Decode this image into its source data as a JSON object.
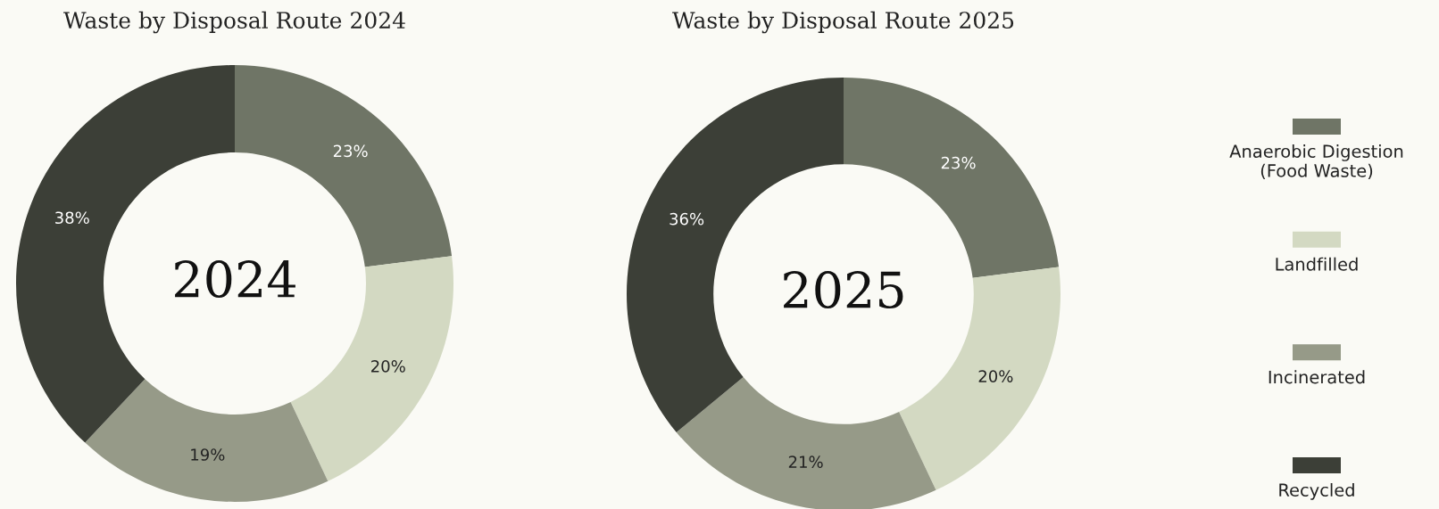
{
  "chart_data": [
    {
      "type": "donut",
      "title": "Waste by Disposal Route 2024",
      "categories": [
        "Anaerobic Digestion\n(Food Waste)",
        "Landfilled",
        "Incinerated",
        "Recycled"
      ],
      "values": [
        23,
        20,
        19,
        38
      ],
      "colors": [
        "#6f7566",
        "#d3d9c2",
        "#969a88",
        "#3c3f37"
      ],
      "value_labels": [
        "23%",
        "20%",
        "19%",
        "38%"
      ],
      "annotations": [
        "2024"
      ],
      "legend": "right"
    },
    {
      "type": "donut",
      "title": "Waste by Disposal Route 2025",
      "categories": [
        null,
        null,
        null,
        null
      ],
      "values": [
        23,
        20,
        21,
        36
      ],
      "colors": [
        "#6f7566",
        "#d3d9c2",
        "#969a88",
        "#3c3f37"
      ],
      "value_labels": [
        "23%",
        "20%",
        "21%",
        "36%"
      ],
      "annotations": [
        "2025"
      ],
      "legend": false
    }
  ]
}
